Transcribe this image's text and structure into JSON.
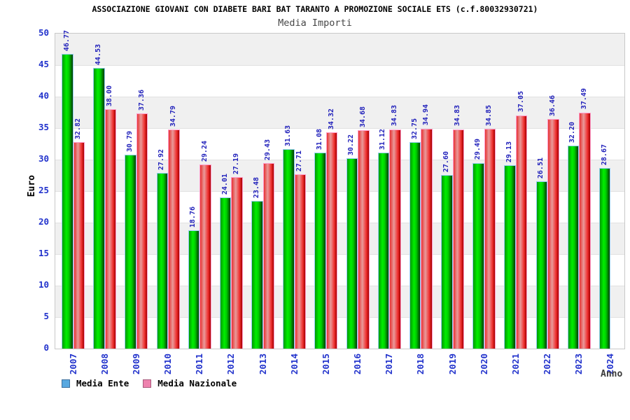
{
  "header": {
    "title": "ASSOCIAZIONE GIOVANI CON DIABETE BARI BAT TARANTO A PROMOZIONE SOCIALE ETS (c.f.80032930721)",
    "subtitle": "Media Importi"
  },
  "legend": {
    "items": [
      {
        "label": "Media Ente",
        "swatch_color": "#58a8e0"
      },
      {
        "label": "Media Nazionale",
        "swatch_color": "#ee82ae"
      }
    ]
  },
  "colors": {
    "bar_green_mid": "#00ee00",
    "bar_green_dark": "#003d00",
    "bar_red_mid": "#f03030",
    "bar_red_light": "#e99a9a",
    "axis_text_blue": "#2233cc",
    "value_label_blue": "#2222bb",
    "band_gray": "#f0f0f0",
    "band_white": "#ffffff"
  },
  "chart_data": {
    "type": "bar",
    "title": "ASSOCIAZIONE GIOVANI CON DIABETE BARI BAT TARANTO A PROMOZIONE SOCIALE ETS (c.f.80032930721)",
    "subtitle": "Media Importi",
    "xlabel": "Anno",
    "ylabel": "Euro",
    "ylim": [
      0,
      50
    ],
    "ytick_step": 5,
    "yticks": [
      0,
      5,
      10,
      15,
      20,
      25,
      30,
      35,
      40,
      45,
      50
    ],
    "grid": "horizontal-bands-alternating",
    "legend_position": "bottom-left",
    "categories": [
      "2007",
      "2008",
      "2009",
      "2010",
      "2011",
      "2012",
      "2013",
      "2014",
      "2015",
      "2016",
      "2017",
      "2018",
      "2019",
      "2020",
      "2021",
      "2022",
      "2023",
      "2024"
    ],
    "series": [
      {
        "name": "Media Ente",
        "bar_style": "green-gradient",
        "values": [
          46.77,
          44.53,
          30.79,
          27.92,
          18.76,
          24.01,
          23.48,
          31.63,
          31.08,
          30.22,
          31.12,
          32.75,
          27.6,
          29.49,
          29.13,
          26.51,
          32.2,
          28.67
        ]
      },
      {
        "name": "Media Nazionale",
        "bar_style": "red-gradient",
        "values": [
          32.82,
          38.0,
          37.36,
          34.79,
          29.24,
          27.19,
          29.43,
          27.71,
          34.32,
          34.68,
          34.83,
          34.94,
          34.83,
          34.85,
          37.05,
          36.46,
          37.49,
          null
        ]
      }
    ]
  }
}
